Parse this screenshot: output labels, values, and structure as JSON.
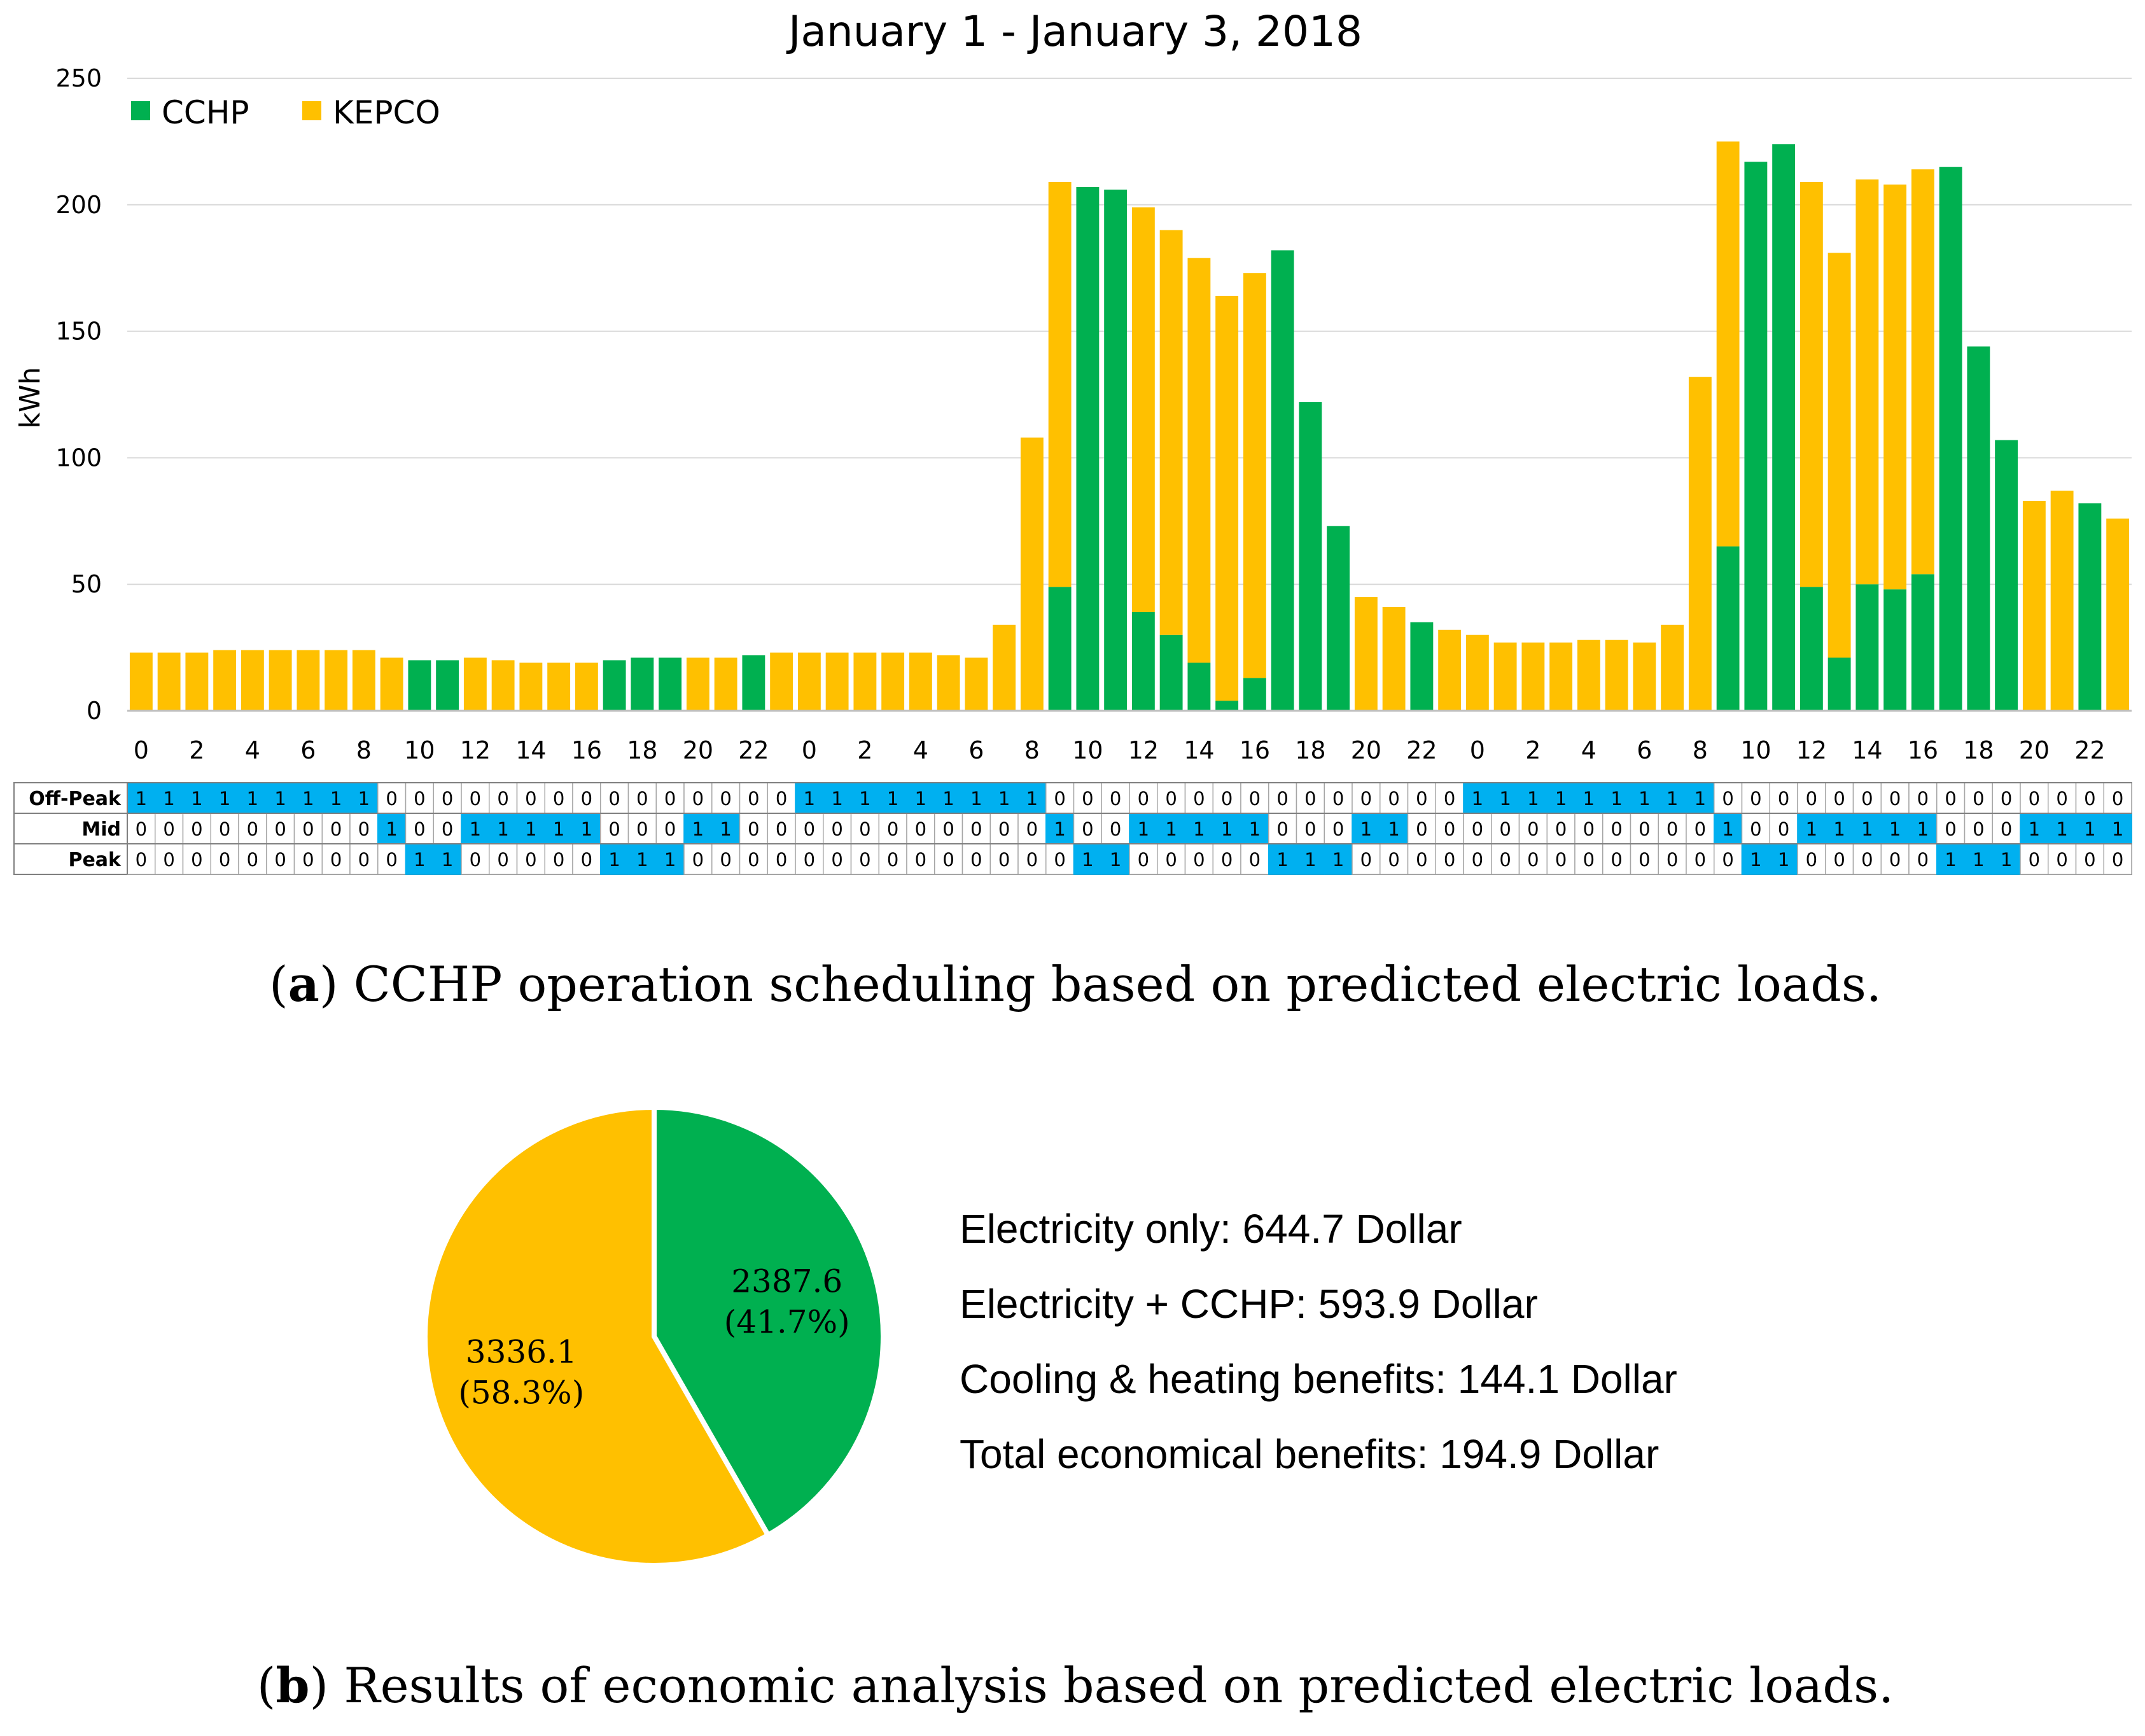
{
  "chart_data": [
    {
      "type": "bar",
      "stacked": true,
      "title": "January 1 - January 3, 2018",
      "ylabel": "kWh",
      "xlabel": "",
      "ylim": [
        0,
        250
      ],
      "yticks": [
        0,
        50,
        100,
        150,
        200,
        250
      ],
      "grid": true,
      "legend_position": "top-left",
      "x_tick_labels": [
        "0",
        "2",
        "4",
        "6",
        "8",
        "10",
        "12",
        "14",
        "16",
        "18",
        "20",
        "22",
        "0",
        "2",
        "4",
        "6",
        "8",
        "10",
        "12",
        "14",
        "16",
        "18",
        "20",
        "22",
        "0",
        "2",
        "4",
        "6",
        "8",
        "10",
        "12",
        "14",
        "16",
        "18",
        "20",
        "22"
      ],
      "series": [
        {
          "name": "CCHP",
          "color": "#00b050",
          "values": [
            0,
            0,
            0,
            0,
            0,
            0,
            0,
            0,
            0,
            0,
            20,
            20,
            0,
            0,
            0,
            0,
            0,
            20,
            21,
            21,
            0,
            0,
            22,
            0,
            0,
            0,
            0,
            0,
            0,
            0,
            0,
            0,
            0,
            49,
            207,
            206,
            39,
            30,
            19,
            4,
            13,
            182,
            122,
            73,
            0,
            0,
            35,
            0,
            0,
            0,
            0,
            0,
            0,
            0,
            0,
            0,
            0,
            65,
            217,
            224,
            49,
            21,
            50,
            48,
            54,
            215,
            144,
            107,
            0,
            0,
            82,
            0
          ]
        },
        {
          "name": "KEPCO",
          "color": "#ffc000",
          "values": [
            23,
            23,
            23,
            24,
            24,
            24,
            24,
            24,
            24,
            21,
            0,
            0,
            21,
            20,
            19,
            19,
            19,
            0,
            0,
            0,
            21,
            21,
            0,
            23,
            23,
            23,
            23,
            23,
            23,
            22,
            21,
            34,
            108,
            160,
            0,
            0,
            160,
            160,
            160,
            160,
            160,
            0,
            0,
            0,
            45,
            41,
            0,
            32,
            30,
            27,
            27,
            27,
            28,
            28,
            27,
            34,
            132,
            160,
            0,
            0,
            160,
            160,
            160,
            160,
            160,
            0,
            0,
            0,
            83,
            87,
            0,
            76
          ]
        }
      ],
      "schedule": {
        "rows": [
          "Off-Peak",
          "Mid",
          "Peak"
        ],
        "off_peak": [
          1,
          1,
          1,
          1,
          1,
          1,
          1,
          1,
          1,
          0,
          0,
          0,
          0,
          0,
          0,
          0,
          0,
          0,
          0,
          0,
          0,
          0,
          0,
          0,
          1,
          1,
          1,
          1,
          1,
          1,
          1,
          1,
          1,
          0,
          0,
          0,
          0,
          0,
          0,
          0,
          0,
          0,
          0,
          0,
          0,
          0,
          0,
          0,
          1,
          1,
          1,
          1,
          1,
          1,
          1,
          1,
          1,
          0,
          0,
          0,
          0,
          0,
          0,
          0,
          0,
          0,
          0,
          0,
          0,
          0,
          0,
          0
        ],
        "mid": [
          0,
          0,
          0,
          0,
          0,
          0,
          0,
          0,
          0,
          1,
          0,
          0,
          1,
          1,
          1,
          1,
          1,
          0,
          0,
          0,
          1,
          1,
          0,
          0,
          0,
          0,
          0,
          0,
          0,
          0,
          0,
          0,
          0,
          1,
          0,
          0,
          1,
          1,
          1,
          1,
          1,
          0,
          0,
          0,
          1,
          1,
          0,
          0,
          0,
          0,
          0,
          0,
          0,
          0,
          0,
          0,
          0,
          1,
          0,
          0,
          1,
          1,
          1,
          1,
          1,
          0,
          0,
          0,
          1,
          1,
          1,
          1
        ],
        "peak": [
          0,
          0,
          0,
          0,
          0,
          0,
          0,
          0,
          0,
          0,
          1,
          1,
          0,
          0,
          0,
          0,
          0,
          1,
          1,
          1,
          0,
          0,
          0,
          0,
          0,
          0,
          0,
          0,
          0,
          0,
          0,
          0,
          0,
          0,
          1,
          1,
          0,
          0,
          0,
          0,
          0,
          1,
          1,
          1,
          0,
          0,
          0,
          0,
          0,
          0,
          0,
          0,
          0,
          0,
          0,
          0,
          0,
          0,
          1,
          1,
          0,
          0,
          0,
          0,
          0,
          1,
          1,
          1,
          0,
          0,
          0,
          0
        ],
        "highlight_color": "#00b0f0"
      }
    },
    {
      "type": "pie",
      "slices": [
        {
          "name": "CCHP",
          "value": 2387.6,
          "label": "2387.6",
          "percent_label": "(41.7%)",
          "color": "#00b050"
        },
        {
          "name": "KEPCO",
          "value": 3336.1,
          "label": "3336.1",
          "percent_label": "(58.3%)",
          "color": "#ffc000"
        }
      ]
    }
  ],
  "captions": {
    "a": {
      "letter": "a",
      "text": ") CCHP operation scheduling based on predicted electric loads."
    },
    "b": {
      "letter": "b",
      "text": ") Results of economic analysis based on predicted electric loads."
    }
  },
  "economics": [
    "Electricity only: 644.7 Dollar",
    "Electricity + CCHP: 593.9 Dollar",
    "Cooling & heating benefits: 144.1 Dollar",
    "Total economical benefits: 194.9 Dollar"
  ]
}
